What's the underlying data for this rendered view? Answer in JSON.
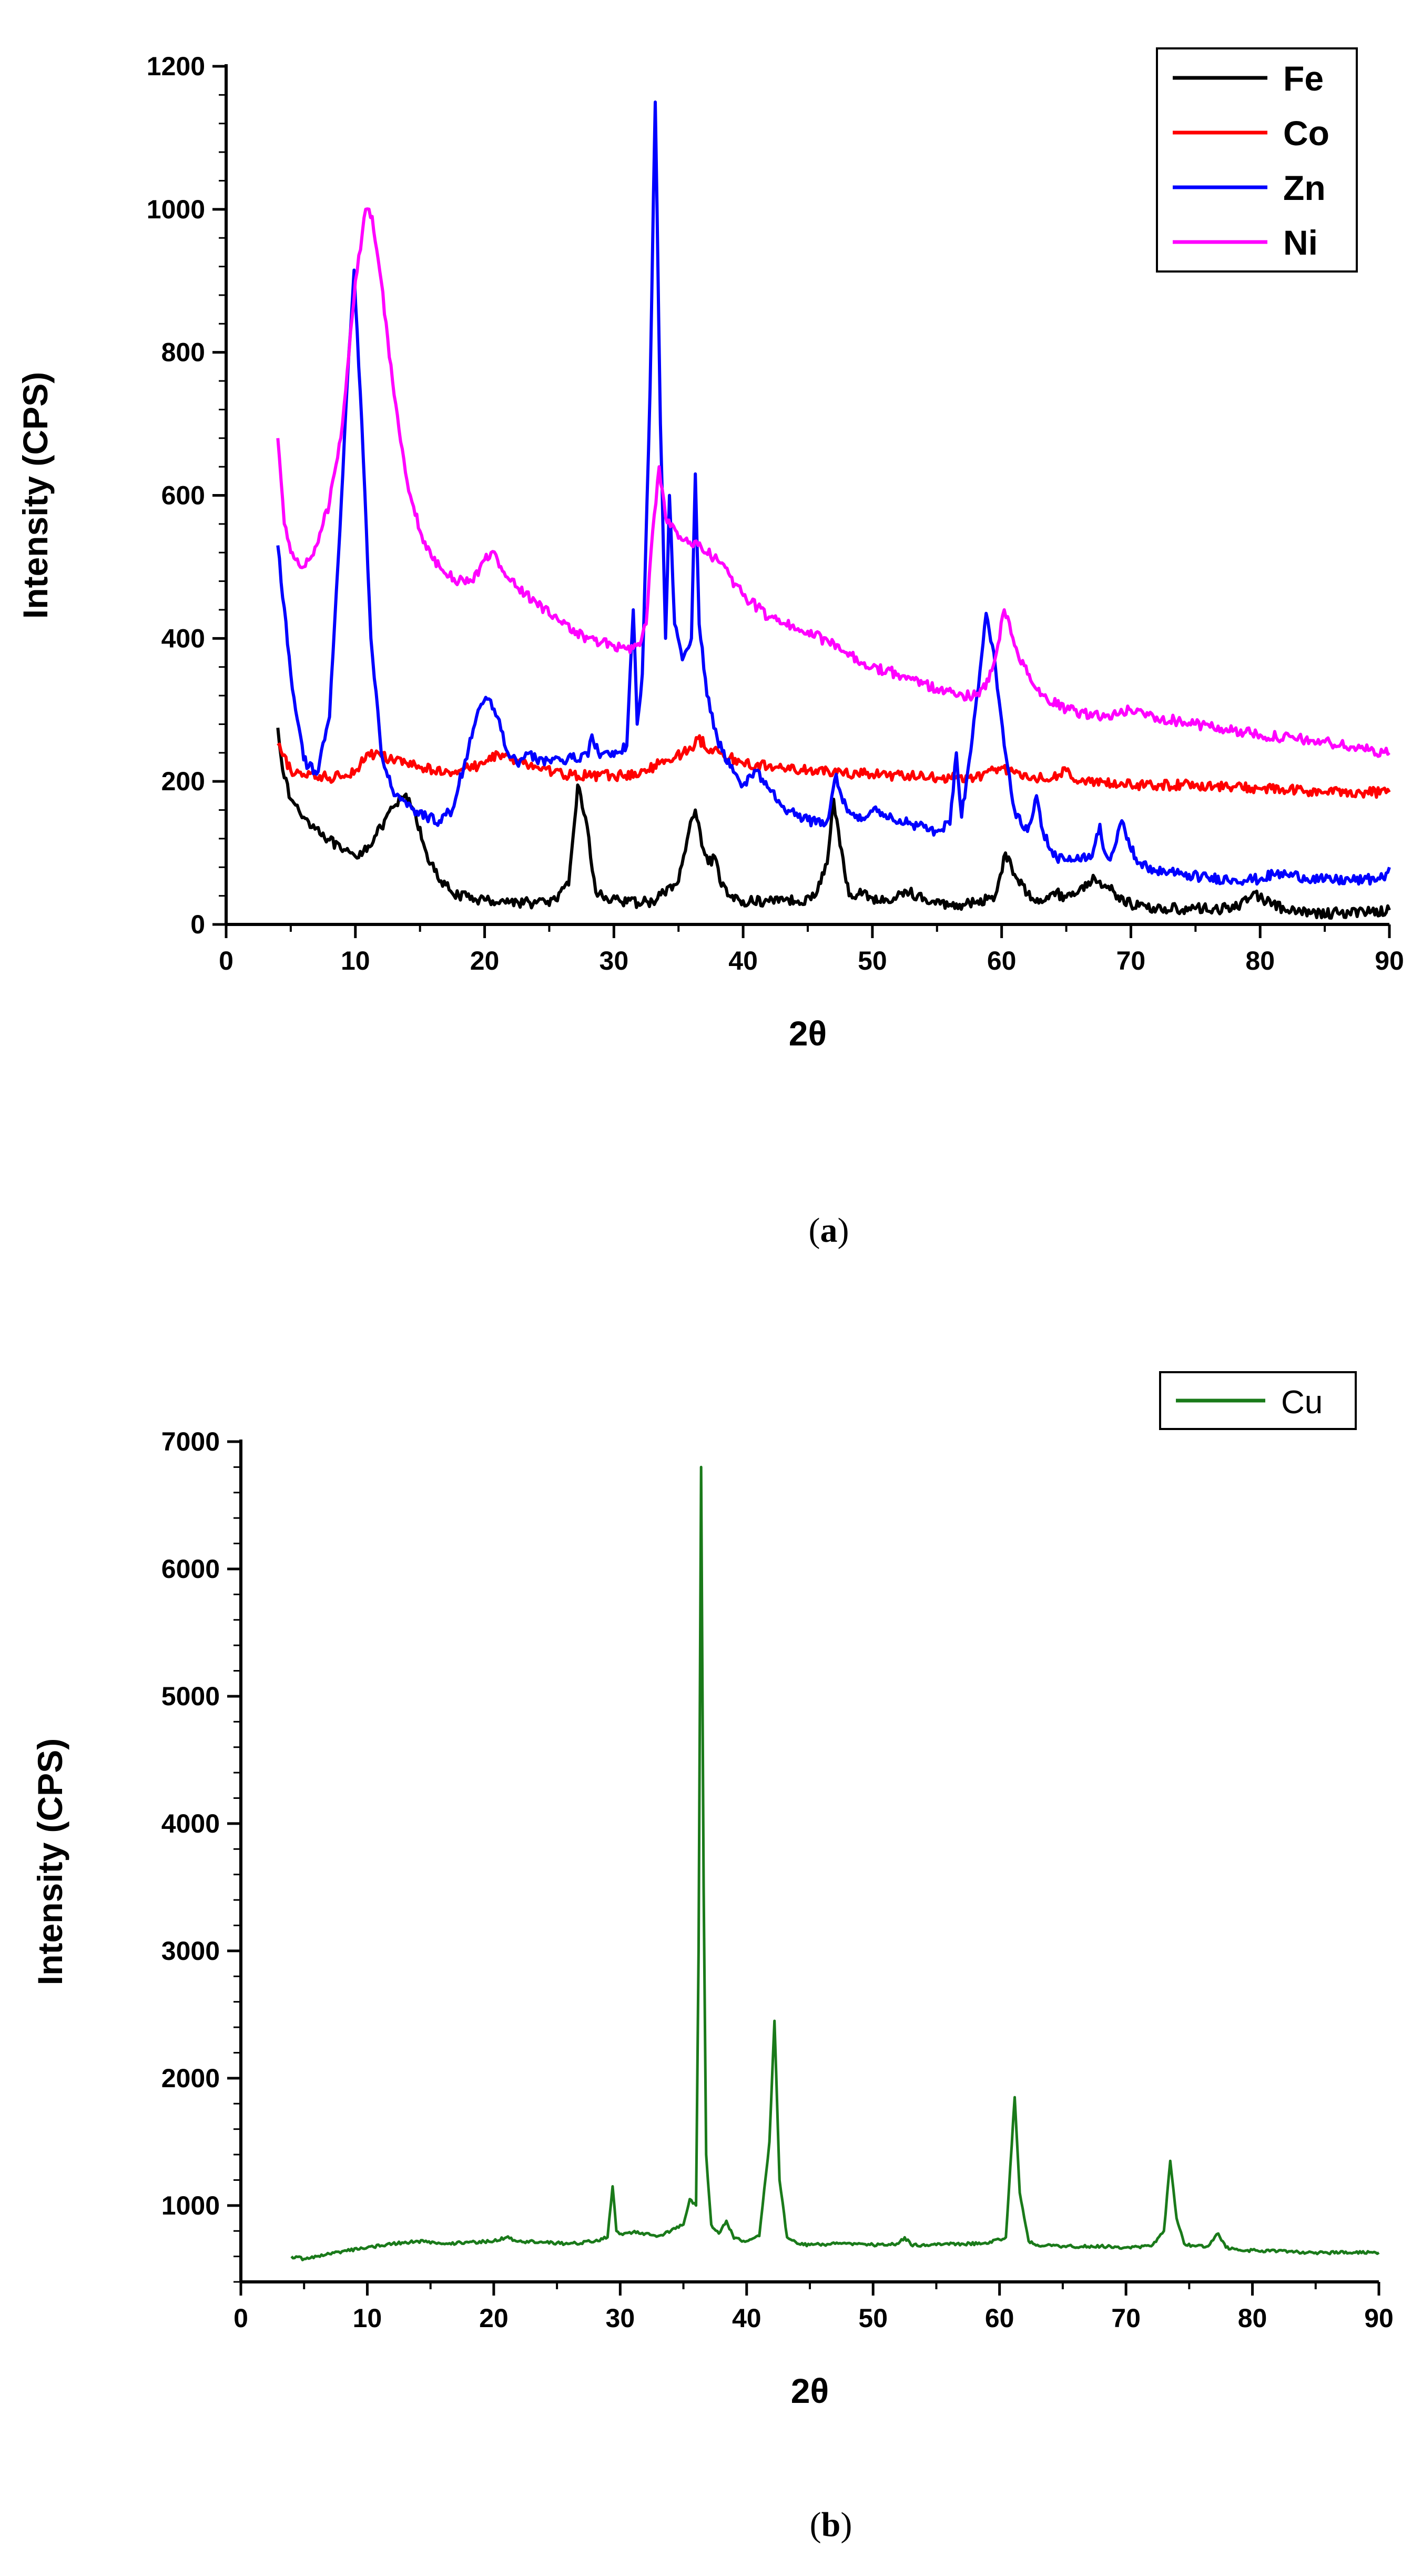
{
  "chart_data": [
    {
      "type": "line",
      "panel": "a",
      "caption": "(a)",
      "caption_bold": "a",
      "xlabel": "2θ",
      "ylabel": "Intensity (CPS)",
      "xlim": [
        0,
        90
      ],
      "ylim": [
        0,
        1200
      ],
      "xticks": [
        0,
        10,
        20,
        30,
        40,
        50,
        60,
        70,
        80,
        90
      ],
      "yticks": [
        0,
        200,
        400,
        600,
        800,
        1000,
        1200
      ],
      "legend_position": "top-right",
      "series": [
        {
          "name": "Fe",
          "color": "#000000",
          "x": [
            4,
            4.5,
            5,
            6,
            7,
            8,
            9,
            10,
            11,
            12,
            13,
            13.8,
            14.5,
            15.5,
            16.5,
            18,
            20,
            22,
            24,
            25.5,
            26.5,
            27.2,
            27.8,
            28.6,
            29.5,
            30,
            30.5,
            31,
            33,
            35,
            35.8,
            36.3,
            36.8,
            37.3,
            37.8,
            38.2,
            38.8,
            40,
            42,
            43,
            44,
            45.5,
            46.5,
            47,
            47.5,
            48.2,
            49.3,
            50.5,
            51.8,
            52.5,
            53.5,
            54.5,
            56,
            57,
            58,
            59.5,
            60.3,
            61,
            62,
            63,
            64,
            65,
            66,
            67.2,
            68,
            69,
            70,
            72,
            75,
            78,
            79.5,
            80.2,
            81,
            82,
            84,
            86,
            88,
            90
          ],
          "y": [
            275,
            205,
            175,
            150,
            135,
            118,
            102,
            95,
            110,
            135,
            165,
            180,
            160,
            100,
            60,
            40,
            34,
            32,
            30,
            34,
            55,
            195,
            150,
            45,
            35,
            40,
            32,
            30,
            32,
            60,
            130,
            160,
            110,
            85,
            95,
            60,
            40,
            33,
            32,
            38,
            32,
            38,
            85,
            175,
            110,
            40,
            45,
            32,
            35,
            48,
            40,
            30,
            28,
            28,
            30,
            40,
            100,
            70,
            42,
            35,
            45,
            38,
            48,
            65,
            55,
            40,
            28,
            22,
            22,
            22,
            45,
            35,
            30,
            18,
            16,
            16,
            18,
            20
          ]
        },
        {
          "name": "Co",
          "color": "#ff0000",
          "x": [
            4,
            5,
            6,
            8,
            10,
            11,
            12,
            14,
            16,
            18,
            20,
            21,
            22,
            24,
            26,
            28,
            30,
            32,
            34,
            36,
            36.5,
            37.5,
            40,
            45,
            50,
            55,
            58,
            60,
            62,
            64,
            65,
            66,
            70,
            75,
            80,
            85,
            90
          ],
          "y": [
            250,
            215,
            210,
            205,
            215,
            240,
            235,
            225,
            215,
            215,
            225,
            240,
            230,
            220,
            210,
            208,
            208,
            210,
            230,
            245,
            260,
            245,
            225,
            215,
            210,
            205,
            205,
            220,
            205,
            205,
            215,
            200,
            195,
            195,
            190,
            185,
            185
          ]
        },
        {
          "name": "Zn",
          "color": "#0000ff",
          "x": [
            4,
            5,
            6,
            7,
            8,
            8.8,
            9.5,
            9.9,
            10.5,
            11.2,
            12,
            13,
            14,
            15.5,
            16.5,
            17.5,
            18.5,
            19.5,
            20.2,
            21,
            21.8,
            22.5,
            23.2,
            24,
            26,
            28,
            28.3,
            28.8,
            30,
            31,
            31.5,
            31.8,
            32.2,
            32.8,
            33.2,
            33.6,
            34,
            34.3,
            34.7,
            35.3,
            36,
            36.3,
            36.6,
            37.2,
            38,
            39,
            40,
            41,
            42,
            43,
            45,
            46.5,
            47.2,
            47.6,
            48.3,
            49.5,
            50.5,
            51.5,
            53,
            55,
            56,
            56.5,
            56.9,
            57.5,
            58.2,
            58.8,
            59.4,
            60.2,
            61,
            62,
            62.7,
            63.2,
            64,
            65,
            66,
            67,
            67.6,
            68,
            68.4,
            69,
            69.3,
            69.8,
            70.5,
            72,
            74,
            76,
            78,
            80,
            81,
            82,
            85,
            88,
            89.5,
            90
          ],
          "y": [
            530,
            350,
            230,
            210,
            290,
            550,
            800,
            915,
            700,
            400,
            240,
            180,
            165,
            150,
            145,
            160,
            230,
            300,
            315,
            290,
            240,
            225,
            240,
            230,
            230,
            235,
            265,
            240,
            235,
            250,
            440,
            280,
            350,
            750,
            1150,
            700,
            400,
            600,
            420,
            370,
            400,
            630,
            420,
            320,
            260,
            220,
            195,
            215,
            190,
            165,
            145,
            145,
            210,
            180,
            155,
            150,
            160,
            150,
            140,
            130,
            140,
            240,
            150,
            230,
            330,
            435,
            380,
            250,
            160,
            130,
            180,
            130,
            95,
            90,
            90,
            95,
            140,
            100,
            90,
            130,
            145,
            120,
            85,
            75,
            70,
            65,
            63,
            63,
            70,
            70,
            62,
            62,
            65,
            80
          ]
        },
        {
          "name": "Ni",
          "color": "#ff00ff",
          "x": [
            4,
            4.5,
            5,
            6,
            7,
            8,
            9,
            10,
            10.8,
            11.3,
            12,
            13,
            14,
            15,
            16,
            17,
            18,
            19,
            20,
            20.5,
            21,
            22,
            24,
            26,
            28,
            30,
            31,
            32,
            32.5,
            33,
            33.5,
            34,
            35,
            36.5,
            38,
            40,
            42,
            45,
            48,
            50,
            52,
            55,
            57,
            58,
            59,
            59.6,
            60.2,
            61,
            62,
            63,
            65,
            68,
            70,
            72,
            75,
            80,
            85,
            88,
            90
          ],
          "y": [
            680,
            560,
            520,
            500,
            530,
            590,
            700,
            900,
            1000,
            990,
            900,
            740,
            620,
            550,
            510,
            490,
            480,
            480,
            510,
            520,
            510,
            480,
            450,
            420,
            400,
            390,
            385,
            390,
            420,
            550,
            640,
            570,
            540,
            530,
            510,
            460,
            430,
            410,
            380,
            360,
            350,
            330,
            320,
            320,
            340,
            380,
            440,
            390,
            350,
            320,
            300,
            290,
            300,
            290,
            280,
            265,
            255,
            245,
            240
          ]
        }
      ]
    },
    {
      "type": "line",
      "panel": "b",
      "caption": "(b)",
      "caption_bold": "b",
      "xlabel": "2θ",
      "ylabel": "Intensity (CPS)",
      "xlim": [
        0,
        90
      ],
      "ylim": [
        400,
        7000
      ],
      "xticks": [
        0,
        10,
        20,
        30,
        40,
        50,
        60,
        70,
        80,
        90
      ],
      "yticks": [
        1000,
        2000,
        3000,
        4000,
        5000,
        6000,
        7000
      ],
      "legend_position": "top-right",
      "series": [
        {
          "name": "Cu",
          "color": "#1a7a1a",
          "x": [
            4,
            5,
            6,
            7,
            8,
            10,
            12,
            14,
            16,
            18,
            20,
            21,
            22,
            24,
            26,
            28,
            29,
            29.4,
            29.7,
            30.2,
            31,
            32,
            33,
            34,
            35,
            35.5,
            36,
            36.2,
            36.4,
            36.6,
            36.8,
            37.2,
            37.8,
            38.4,
            39,
            40,
            41,
            41.8,
            42.2,
            42.6,
            43.2,
            44,
            45,
            47,
            49,
            50,
            52,
            52.5,
            53,
            55,
            57,
            59,
            60.5,
            61.2,
            61.6,
            62.3,
            63,
            65,
            68,
            70,
            72,
            73,
            73.5,
            74,
            74.6,
            75.5,
            76.5,
            77.3,
            77.9,
            79,
            82,
            85,
            88,
            90
          ],
          "y": [
            600,
            580,
            600,
            620,
            640,
            670,
            700,
            720,
            700,
            710,
            720,
            750,
            720,
            710,
            700,
            720,
            750,
            1150,
            800,
            770,
            790,
            780,
            760,
            800,
            850,
            1050,
            1000,
            3000,
            6800,
            3500,
            1400,
            850,
            780,
            880,
            740,
            720,
            760,
            1500,
            2450,
            1200,
            750,
            700,
            690,
            700,
            700,
            690,
            700,
            750,
            690,
            690,
            700,
            700,
            750,
            1850,
            1100,
            720,
            690,
            680,
            680,
            670,
            680,
            800,
            1350,
            900,
            700,
            680,
            680,
            780,
            670,
            650,
            640,
            630,
            630,
            630
          ]
        }
      ]
    }
  ]
}
